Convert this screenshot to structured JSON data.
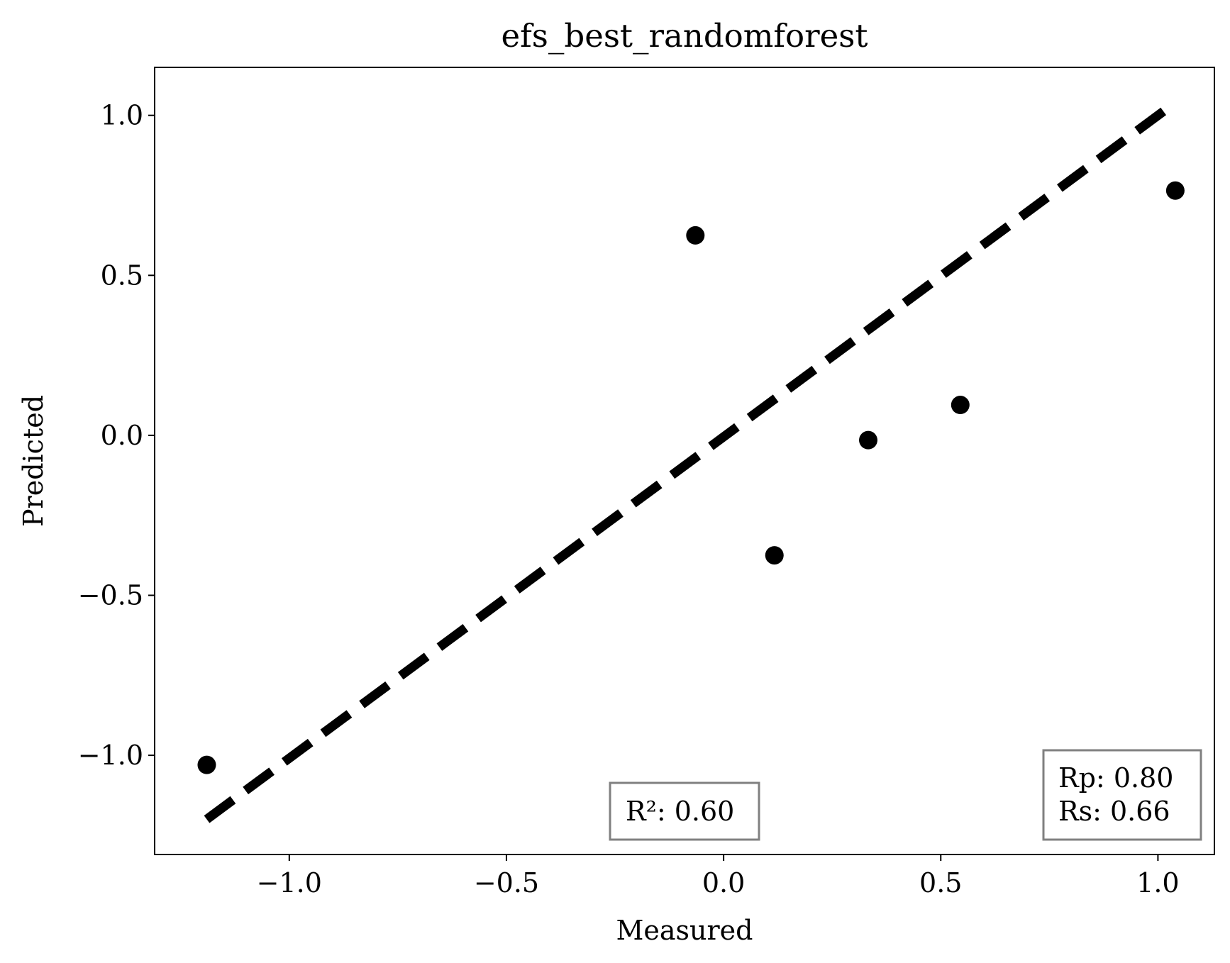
{
  "chart_data": {
    "type": "scatter",
    "title": "efs_best_randomforest",
    "xlabel": "Measured",
    "ylabel": "Predicted",
    "xlim": [
      -1.31,
      1.13
    ],
    "ylim": [
      -1.31,
      1.15
    ],
    "xticks": [
      -1.0,
      -0.5,
      0.0,
      0.5,
      1.0
    ],
    "xtick_labels": [
      "−1.0",
      "−0.5",
      "0.0",
      "0.5",
      "1.0"
    ],
    "yticks": [
      -1.0,
      -0.5,
      0.0,
      0.5,
      1.0
    ],
    "ytick_labels": [
      "−1.0",
      "−0.5",
      "0.0",
      "0.5",
      "1.0"
    ],
    "grid": false,
    "series": [
      {
        "name": "points",
        "color": "#000000",
        "points": [
          {
            "x": -1.19,
            "y": -1.03
          },
          {
            "x": -0.065,
            "y": 0.625
          },
          {
            "x": 0.117,
            "y": -0.375
          },
          {
            "x": 0.333,
            "y": -0.015
          },
          {
            "x": 0.545,
            "y": 0.095
          },
          {
            "x": 1.04,
            "y": 0.765
          }
        ]
      }
    ],
    "fit_line": {
      "style": "dashed",
      "color": "#000000",
      "x": [
        -1.19,
        1.04
      ],
      "y": [
        -1.2,
        1.04
      ]
    },
    "annotations": {
      "r2": {
        "text": "R²: 0.60",
        "color": "#0000ff",
        "border_color": "#808080"
      },
      "corr": {
        "lines": [
          "Rp: 0.80",
          "Rs: 0.66"
        ],
        "color": "#000000",
        "border_color": "#808080"
      }
    }
  }
}
